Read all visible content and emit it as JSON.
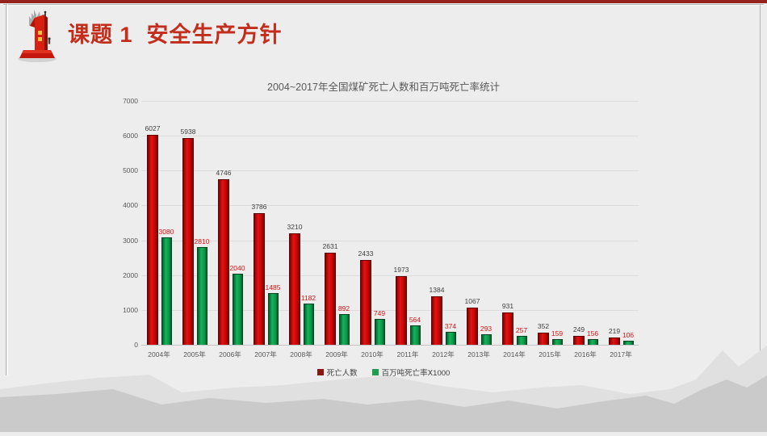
{
  "header": {
    "title": "课题 1  安全生产方针",
    "icon": "red-number-one-trophy"
  },
  "chart_data": {
    "type": "bar",
    "title": "2004~2017年全国煤矿死亡人数和百万吨死亡率统计",
    "categories": [
      "2004年",
      "2005年",
      "2006年",
      "2007年",
      "2008年",
      "2009年",
      "2010年",
      "2011年",
      "2012年",
      "2013年",
      "2014年",
      "2015年",
      "2016年",
      "2017年"
    ],
    "series": [
      {
        "name": "死亡人数",
        "color": "#c00000",
        "label_color": "#3f3f3f",
        "values": [
          6027,
          5938,
          4746,
          3786,
          3210,
          2631,
          2433,
          1973,
          1384,
          1067,
          931,
          352,
          249,
          219
        ]
      },
      {
        "name": "百万吨死亡率Ⅹ1000",
        "color": "#0f9d4e",
        "label_color": "#e01010",
        "values": [
          3080,
          2810,
          2040,
          1485,
          1182,
          892,
          749,
          564,
          374,
          293,
          257,
          159,
          156,
          106
        ]
      }
    ],
    "xlabel": "",
    "ylabel": "",
    "ylim": [
      0,
      7000
    ],
    "yticks": [
      0,
      1000,
      2000,
      3000,
      4000,
      5000,
      6000,
      7000
    ],
    "grid": true,
    "legend_position": "bottom"
  },
  "colors": {
    "slide_background": "#ededed",
    "top_edge": "#96231b",
    "title_red": "#c22d1c",
    "chart_text": "#595959",
    "mountain_back": "#e0e0e0",
    "mountain_front": "#cacaca"
  }
}
